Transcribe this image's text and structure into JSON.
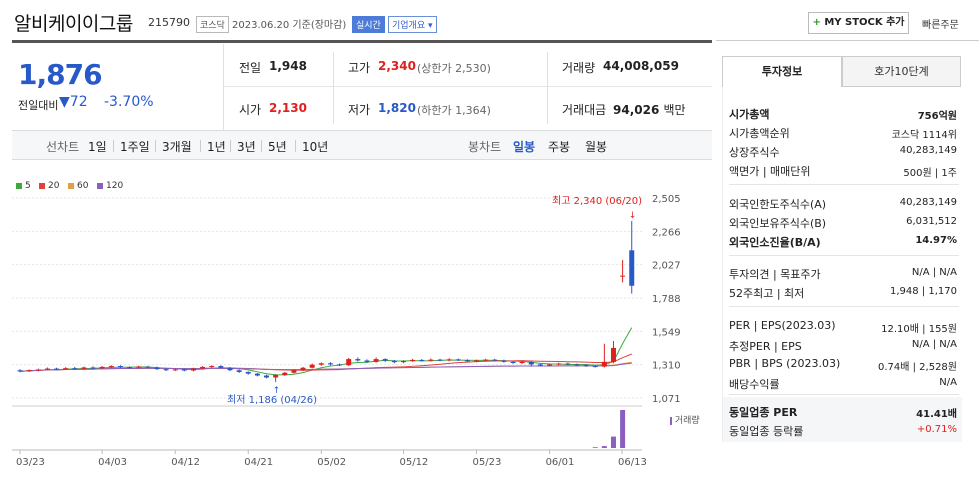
{
  "header": {
    "company": "알비케이이그룹",
    "code": "215790",
    "market": "코스닥",
    "date": "2023.06.20 기준(장마감)",
    "live": "실시간",
    "company_info": "기업개요",
    "my_stock": "MY STOCK 추가",
    "quick_order": "빠른주문"
  },
  "price": {
    "current": "1,876",
    "prev_label": "전일대비",
    "change": "72",
    "change_pct": "-3.70%"
  },
  "stats": {
    "prev_close_label": "전일",
    "prev_close": "1,948",
    "high_label": "고가",
    "high": "2,340",
    "upper_limit": "(상한가 2,530)",
    "volume_label": "거래량",
    "volume": "44,008,059",
    "open_label": "시가",
    "open": "2,130",
    "low_label": "저가",
    "low": "1,820",
    "lower_limit": "(하한가 1,364)",
    "amount_label": "거래대금",
    "amount": "94,026",
    "amount_unit": "백만"
  },
  "periods": {
    "line_label": "선차트",
    "line": [
      "1일",
      "1주일",
      "3개월",
      "1년",
      "3년",
      "5년",
      "10년"
    ],
    "candle_label": "봉차트",
    "candle": [
      "일봉",
      "주봉",
      "월봉"
    ],
    "candle_active": "일봉"
  },
  "chart": {
    "legend": [
      {
        "label": "5",
        "color": "#3fa83f"
      },
      {
        "label": "20",
        "color": "#e04040"
      },
      {
        "label": "60",
        "color": "#e0a040"
      },
      {
        "label": "120",
        "color": "#8a5fbf"
      }
    ],
    "max_annot": "최고 2,340 (06/20)",
    "min_annot": "최저 1,186 (04/26)",
    "volume_label": "거래량",
    "up_color": "#e0201f",
    "down_color": "#2859c8"
  },
  "chart_data": {
    "type": "candlestick",
    "y_ticks": [
      "2,505",
      "2,266",
      "2,027",
      "1,788",
      "1,549",
      "1,310",
      "1,071"
    ],
    "ylim": [
      1071,
      2505
    ],
    "x_ticks": [
      "03/23",
      "04/03",
      "04/12",
      "04/21",
      "05/02",
      "05/12",
      "05/23",
      "06/01",
      "06/13"
    ],
    "candles": [
      {
        "o": 1270,
        "c": 1262,
        "h": 1278,
        "l": 1255
      },
      {
        "o": 1262,
        "c": 1270,
        "h": 1276,
        "l": 1258
      },
      {
        "o": 1268,
        "c": 1275,
        "h": 1282,
        "l": 1262
      },
      {
        "o": 1276,
        "c": 1282,
        "h": 1290,
        "l": 1270
      },
      {
        "o": 1282,
        "c": 1276,
        "h": 1288,
        "l": 1270
      },
      {
        "o": 1276,
        "c": 1285,
        "h": 1292,
        "l": 1272
      },
      {
        "o": 1285,
        "c": 1280,
        "h": 1294,
        "l": 1275
      },
      {
        "o": 1280,
        "c": 1290,
        "h": 1296,
        "l": 1276
      },
      {
        "o": 1290,
        "c": 1284,
        "h": 1298,
        "l": 1278
      },
      {
        "o": 1284,
        "c": 1294,
        "h": 1300,
        "l": 1280
      },
      {
        "o": 1294,
        "c": 1300,
        "h": 1306,
        "l": 1288
      },
      {
        "o": 1300,
        "c": 1292,
        "h": 1306,
        "l": 1286
      },
      {
        "o": 1292,
        "c": 1288,
        "h": 1298,
        "l": 1282
      },
      {
        "o": 1288,
        "c": 1296,
        "h": 1302,
        "l": 1282
      },
      {
        "o": 1296,
        "c": 1290,
        "h": 1302,
        "l": 1284
      },
      {
        "o": 1290,
        "c": 1278,
        "h": 1296,
        "l": 1272
      },
      {
        "o": 1278,
        "c": 1270,
        "h": 1284,
        "l": 1264
      },
      {
        "o": 1270,
        "c": 1276,
        "h": 1282,
        "l": 1264
      },
      {
        "o": 1276,
        "c": 1268,
        "h": 1282,
        "l": 1262
      },
      {
        "o": 1268,
        "c": 1282,
        "h": 1288,
        "l": 1262
      },
      {
        "o": 1282,
        "c": 1294,
        "h": 1300,
        "l": 1276
      },
      {
        "o": 1294,
        "c": 1300,
        "h": 1306,
        "l": 1288
      },
      {
        "o": 1300,
        "c": 1288,
        "h": 1306,
        "l": 1282
      },
      {
        "o": 1288,
        "c": 1270,
        "h": 1292,
        "l": 1264
      },
      {
        "o": 1270,
        "c": 1258,
        "h": 1276,
        "l": 1250
      },
      {
        "o": 1258,
        "c": 1246,
        "h": 1262,
        "l": 1238
      },
      {
        "o": 1246,
        "c": 1232,
        "h": 1250,
        "l": 1226
      },
      {
        "o": 1232,
        "c": 1218,
        "h": 1238,
        "l": 1212
      },
      {
        "o": 1218,
        "c": 1236,
        "h": 1242,
        "l": 1186
      },
      {
        "o": 1236,
        "c": 1252,
        "h": 1258,
        "l": 1230
      },
      {
        "o": 1252,
        "c": 1270,
        "h": 1276,
        "l": 1246
      },
      {
        "o": 1270,
        "c": 1288,
        "h": 1294,
        "l": 1264
      },
      {
        "o": 1288,
        "c": 1310,
        "h": 1318,
        "l": 1282
      },
      {
        "o": 1310,
        "c": 1320,
        "h": 1326,
        "l": 1302
      },
      {
        "o": 1320,
        "c": 1312,
        "h": 1328,
        "l": 1304
      },
      {
        "o": 1312,
        "c": 1306,
        "h": 1318,
        "l": 1300
      },
      {
        "o": 1306,
        "c": 1350,
        "h": 1358,
        "l": 1300
      },
      {
        "o": 1350,
        "c": 1340,
        "h": 1362,
        "l": 1332
      },
      {
        "o": 1340,
        "c": 1330,
        "h": 1348,
        "l": 1322
      },
      {
        "o": 1330,
        "c": 1350,
        "h": 1362,
        "l": 1324
      },
      {
        "o": 1350,
        "c": 1338,
        "h": 1356,
        "l": 1330
      },
      {
        "o": 1338,
        "c": 1328,
        "h": 1344,
        "l": 1320
      },
      {
        "o": 1328,
        "c": 1336,
        "h": 1342,
        "l": 1320
      },
      {
        "o": 1336,
        "c": 1344,
        "h": 1352,
        "l": 1330
      },
      {
        "o": 1344,
        "c": 1338,
        "h": 1350,
        "l": 1332
      },
      {
        "o": 1338,
        "c": 1346,
        "h": 1354,
        "l": 1332
      },
      {
        "o": 1346,
        "c": 1340,
        "h": 1352,
        "l": 1334
      },
      {
        "o": 1340,
        "c": 1348,
        "h": 1356,
        "l": 1334
      },
      {
        "o": 1348,
        "c": 1342,
        "h": 1354,
        "l": 1336
      },
      {
        "o": 1342,
        "c": 1334,
        "h": 1348,
        "l": 1328
      },
      {
        "o": 1334,
        "c": 1340,
        "h": 1346,
        "l": 1328
      },
      {
        "o": 1340,
        "c": 1346,
        "h": 1352,
        "l": 1334
      },
      {
        "o": 1346,
        "c": 1340,
        "h": 1352,
        "l": 1334
      },
      {
        "o": 1340,
        "c": 1330,
        "h": 1346,
        "l": 1324
      },
      {
        "o": 1330,
        "c": 1322,
        "h": 1336,
        "l": 1316
      },
      {
        "o": 1322,
        "c": 1330,
        "h": 1336,
        "l": 1316
      },
      {
        "o": 1330,
        "c": 1312,
        "h": 1336,
        "l": 1296
      },
      {
        "o": 1312,
        "c": 1304,
        "h": 1318,
        "l": 1298
      },
      {
        "o": 1304,
        "c": 1312,
        "h": 1318,
        "l": 1298
      },
      {
        "o": 1312,
        "c": 1318,
        "h": 1324,
        "l": 1306
      },
      {
        "o": 1318,
        "c": 1312,
        "h": 1324,
        "l": 1306
      },
      {
        "o": 1312,
        "c": 1308,
        "h": 1318,
        "l": 1300
      },
      {
        "o": 1308,
        "c": 1300,
        "h": 1314,
        "l": 1294
      },
      {
        "o": 1300,
        "c": 1296,
        "h": 1306,
        "l": 1290
      },
      {
        "o": 1296,
        "c": 1330,
        "h": 1460,
        "l": 1290
      },
      {
        "o": 1330,
        "c": 1430,
        "h": 1480,
        "l": 1320
      },
      {
        "o": 1948,
        "c": 1948,
        "h": 2060,
        "l": 1900
      },
      {
        "o": 2130,
        "c": 1876,
        "h": 2340,
        "l": 1820
      }
    ],
    "volume_rel": [
      0,
      0,
      0,
      0,
      0,
      0,
      0,
      0,
      0,
      0,
      0,
      0,
      0,
      0,
      0,
      0,
      0,
      0,
      0,
      0,
      0,
      0,
      0,
      0,
      0,
      0,
      0,
      0,
      0,
      0,
      0,
      0,
      0,
      0,
      0,
      0,
      0,
      0,
      0,
      0,
      0,
      0,
      0,
      0,
      0,
      0,
      0,
      0,
      0,
      0,
      0,
      0,
      0,
      0,
      0,
      0,
      0,
      0,
      0,
      0,
      0,
      0,
      0,
      0.02,
      0.05,
      0.3,
      1.0
    ]
  },
  "tabs": {
    "invest": "투자정보",
    "quote": "호가10단계"
  },
  "invest": {
    "market_cap_label": "시가총액",
    "market_cap": "756억원",
    "rank_label": "시가총액순위",
    "rank": "코스닥 1114위",
    "shares_label": "상장주식수",
    "shares": "40,283,149",
    "par_label": "액면가 | 매매단위",
    "par": "500원 | 1주",
    "foreign_limit_label": "외국인한도주식수(A)",
    "foreign_limit": "40,283,149",
    "foreign_hold_label": "외국인보유주식수(B)",
    "foreign_hold": "6,031,512",
    "foreign_ratio_label": "외국인소진율(B/A)",
    "foreign_ratio": "14.97%",
    "opinion_label": "투자의견 | 목표주가",
    "opinion": "N/A | N/A",
    "week52_label": "52주최고 | 최저",
    "week52": "1,948 | 1,170",
    "per_label": "PER | EPS(2023.03)",
    "per": "12.10배 | 155원",
    "est_per_label": "추정PER | EPS",
    "est_per": "N/A | N/A",
    "pbr_label": "PBR | BPS (2023.03)",
    "pbr": "0.74배 | 2,528원",
    "div_label": "배당수익률",
    "div": "N/A",
    "sector_per_label": "동일업종 PER",
    "sector_per": "41.41배",
    "sector_rate_label": "동일업종 등락률",
    "sector_rate": "+0.71%"
  }
}
